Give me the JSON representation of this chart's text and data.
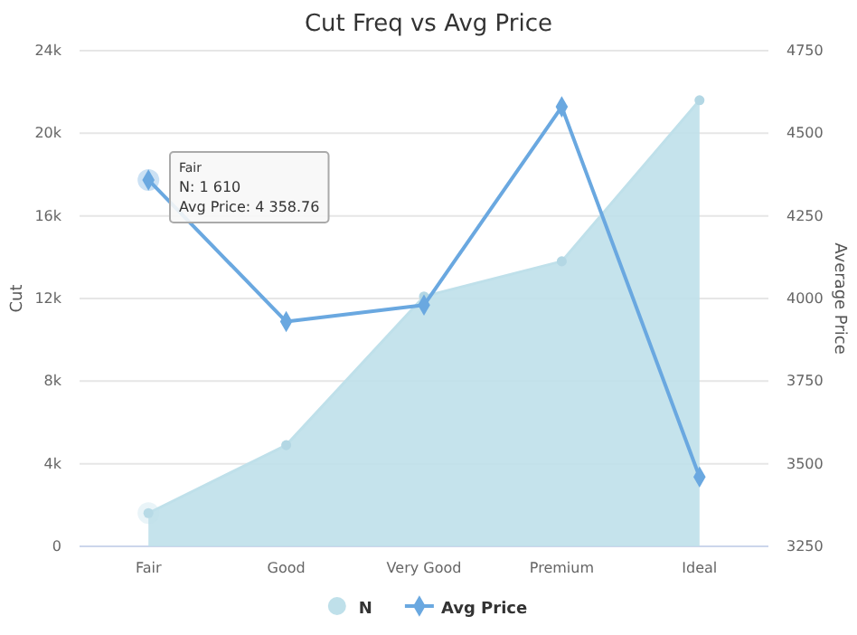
{
  "chart_data": {
    "type": "area",
    "title": "Cut Freq vs Avg Price",
    "ylabel": "Cut",
    "y2label": "Average Price",
    "categories": [
      "Fair",
      "Good",
      "Very Good",
      "Premium",
      "Ideal"
    ],
    "series": [
      {
        "name": "N",
        "color": "#bfe0ea",
        "marker": "circle",
        "values": [
          1610,
          4900,
          12100,
          13800,
          21600
        ]
      },
      {
        "name": "Avg Price",
        "type": "line",
        "axis": "y2",
        "color": "#6aa8e0",
        "marker": "diamond",
        "values": [
          4358.76,
          3930,
          3980,
          4580,
          3460
        ]
      }
    ],
    "ylim": [
      0,
      24000
    ],
    "yticks": [
      {
        "value": 0,
        "label": "0"
      },
      {
        "value": 4000,
        "label": "4k"
      },
      {
        "value": 8000,
        "label": "8k"
      },
      {
        "value": 12000,
        "label": "12k"
      },
      {
        "value": 16000,
        "label": "16k"
      },
      {
        "value": 20000,
        "label": "20k"
      },
      {
        "value": 24000,
        "label": "24k"
      }
    ],
    "y2lim": [
      3250,
      4750
    ],
    "y2ticks": [
      3250,
      3500,
      3750,
      4000,
      4250,
      4500,
      4750
    ],
    "grid": "y",
    "legend": "bottom",
    "annotations": [
      "Fair\nN: 1 610\nAvg Price: 4 358.76"
    ]
  }
}
